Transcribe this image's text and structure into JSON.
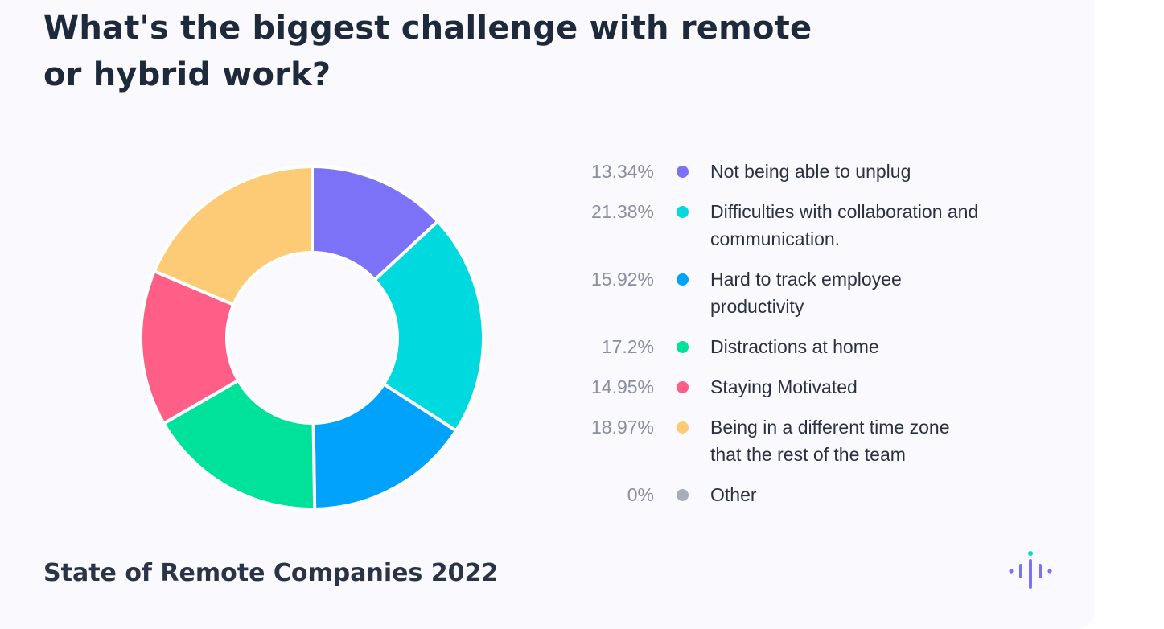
{
  "title": "What's the biggest challenge with remote or hybrid work?",
  "footer": "State of Remote Companies 2022",
  "logo_icon": "sound-wave-logo-icon",
  "chart_data": {
    "type": "pie",
    "donut": true,
    "legend_position": "right",
    "slices": [
      {
        "label": "Not being able to unplug",
        "value": 13.34,
        "value_label": "13.34%",
        "color": "#7b72f7"
      },
      {
        "label": "Difficulties with collaboration and communication.",
        "value": 21.38,
        "value_label": "21.38%",
        "color": "#00d9de"
      },
      {
        "label": "Hard to track employee productivity",
        "value": 15.92,
        "value_label": "15.92%",
        "color": "#00a2fc"
      },
      {
        "label": "Distractions at home",
        "value": 17.2,
        "value_label": "17.2%",
        "color": "#00e29a"
      },
      {
        "label": "Staying Motivated",
        "value": 14.95,
        "value_label": "14.95%",
        "color": "#ff5f87"
      },
      {
        "label": "Being in a different time zone that the rest of the team",
        "value": 18.97,
        "value_label": "18.97%",
        "color": "#fdcb75"
      },
      {
        "label": "Other",
        "value": 0,
        "value_label": "0%",
        "color": "#a8adb8"
      }
    ]
  }
}
